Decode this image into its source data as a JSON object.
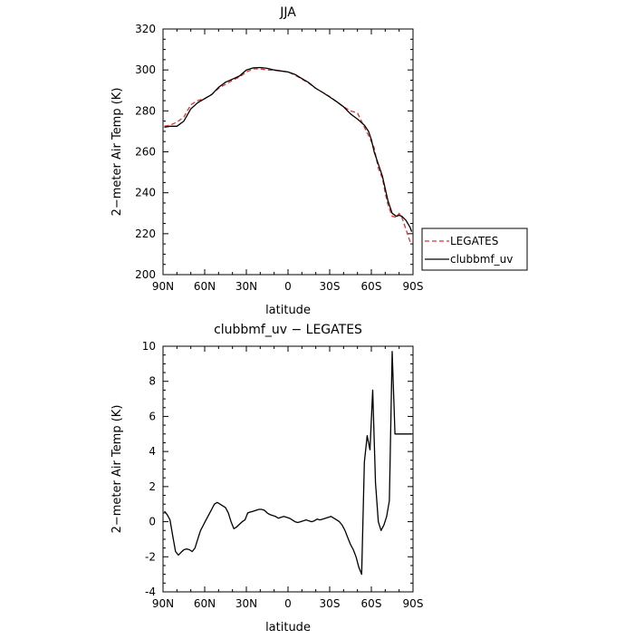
{
  "chart_data": [
    {
      "type": "line",
      "title": "JJA",
      "xlabel": "latitude",
      "ylabel": "2−meter Air Temp (K)",
      "xlim": [
        90,
        -90
      ],
      "ylim": [
        200,
        320
      ],
      "xticks": [
        {
          "value": 90,
          "label": "90N"
        },
        {
          "value": 60,
          "label": "60N"
        },
        {
          "value": 30,
          "label": "30N"
        },
        {
          "value": 0,
          "label": "0"
        },
        {
          "value": -30,
          "label": "30S"
        },
        {
          "value": -60,
          "label": "60S"
        },
        {
          "value": -90,
          "label": "90S"
        }
      ],
      "yticks": [
        200,
        220,
        240,
        260,
        280,
        300,
        320
      ],
      "grid": false,
      "legend_placement": "outside-right",
      "series": [
        {
          "name": "LEGATES",
          "color": "#e03030",
          "dash": true,
          "x": [
            89,
            85,
            80,
            75,
            70,
            65,
            60,
            55,
            50,
            45,
            40,
            35,
            30,
            25,
            20,
            15,
            10,
            5,
            0,
            -5,
            -10,
            -15,
            -20,
            -25,
            -30,
            -35,
            -40,
            -45,
            -50,
            -55,
            -58,
            -60,
            -62,
            -65,
            -68,
            -70,
            -72,
            -75,
            -78,
            -80,
            -82,
            -85,
            -88,
            -89
          ],
          "y": [
            272.5,
            273.0,
            274.5,
            277.0,
            283.0,
            285.0,
            286.0,
            288.0,
            291.0,
            293.0,
            295.0,
            296.5,
            299.0,
            300.5,
            300.5,
            300.0,
            299.8,
            299.5,
            299.0,
            297.5,
            295.5,
            293.5,
            291.0,
            289.0,
            287.0,
            284.5,
            282.0,
            280.0,
            279.0,
            272.0,
            268.0,
            265.0,
            262.0,
            252.0,
            247.0,
            240.0,
            234.0,
            228.5,
            228.0,
            230.0,
            228.0,
            222.0,
            216.0,
            215.0
          ]
        },
        {
          "name": "clubbmf_uv",
          "color": "#000000",
          "dash": false,
          "x": [
            89,
            85,
            80,
            75,
            70,
            65,
            60,
            55,
            50,
            45,
            40,
            35,
            30,
            25,
            20,
            15,
            10,
            5,
            0,
            -5,
            -10,
            -15,
            -20,
            -25,
            -30,
            -35,
            -40,
            -45,
            -50,
            -55,
            -58,
            -60,
            -62,
            -65,
            -68,
            -70,
            -72,
            -75,
            -78,
            -80,
            -82,
            -85,
            -88,
            -89
          ],
          "y": [
            272.0,
            272.5,
            272.5,
            275.0,
            281.0,
            284.0,
            286.0,
            288.0,
            291.5,
            294.0,
            295.5,
            297.0,
            300.0,
            301.0,
            301.2,
            300.8,
            300.0,
            299.5,
            299.0,
            297.8,
            295.8,
            293.8,
            291.0,
            289.0,
            286.8,
            284.5,
            282.0,
            278.5,
            276.0,
            273.0,
            270.0,
            266.0,
            260.0,
            254.0,
            248.0,
            242.0,
            236.0,
            230.0,
            228.5,
            229.0,
            228.5,
            226.5,
            223.0,
            221.0
          ]
        }
      ]
    },
    {
      "type": "line",
      "title": "clubbmf_uv − LEGATES",
      "xlabel": "latitude",
      "ylabel": "2−meter Air Temp (K)",
      "xlim": [
        90,
        -90
      ],
      "ylim": [
        -4,
        10
      ],
      "xticks": [
        {
          "value": 90,
          "label": "90N"
        },
        {
          "value": 60,
          "label": "60N"
        },
        {
          "value": 30,
          "label": "30N"
        },
        {
          "value": 0,
          "label": "0"
        },
        {
          "value": -30,
          "label": "30S"
        },
        {
          "value": -60,
          "label": "60S"
        },
        {
          "value": -90,
          "label": "90S"
        }
      ],
      "yticks": [
        -4,
        -2,
        0,
        2,
        4,
        6,
        8,
        10
      ],
      "grid": false,
      "series": [
        {
          "color": "#000000",
          "dash": false,
          "x": [
            89,
            87,
            85,
            83,
            81,
            79,
            77,
            75,
            73,
            71,
            69,
            67,
            65,
            63,
            61,
            59,
            57,
            55,
            53,
            51,
            49,
            47,
            45,
            43,
            41,
            39,
            37,
            35,
            33,
            31,
            29,
            27,
            25,
            23,
            21,
            19,
            17,
            15,
            13,
            11,
            9,
            7,
            5,
            3,
            1,
            -1,
            -3,
            -5,
            -7,
            -9,
            -11,
            -13,
            -15,
            -17,
            -19,
            -21,
            -23,
            -25,
            -27,
            -29,
            -31,
            -33,
            -35,
            -37,
            -39,
            -41,
            -43,
            -45,
            -47,
            -49,
            -51,
            -53,
            -55,
            -57,
            -59,
            -61,
            -63,
            -65,
            -67,
            -69,
            -71,
            -73,
            -75,
            -77,
            -79,
            -81,
            -83,
            -85,
            -87,
            -89
          ],
          "y": [
            0.6,
            0.4,
            0.1,
            -0.8,
            -1.7,
            -1.9,
            -1.75,
            -1.6,
            -1.55,
            -1.6,
            -1.7,
            -1.5,
            -1.0,
            -0.5,
            -0.2,
            0.1,
            0.4,
            0.7,
            1.0,
            1.1,
            1.0,
            0.9,
            0.8,
            0.5,
            0.0,
            -0.4,
            -0.3,
            -0.15,
            0.0,
            0.1,
            0.5,
            0.55,
            0.6,
            0.65,
            0.7,
            0.7,
            0.65,
            0.5,
            0.4,
            0.35,
            0.3,
            0.2,
            0.25,
            0.3,
            0.25,
            0.2,
            0.1,
            0.0,
            -0.05,
            0.0,
            0.05,
            0.1,
            0.05,
            0.0,
            0.05,
            0.15,
            0.1,
            0.15,
            0.2,
            0.25,
            0.3,
            0.2,
            0.1,
            0.0,
            -0.2,
            -0.5,
            -0.9,
            -1.3,
            -1.6,
            -2.0,
            -2.6,
            -3.0,
            3.4,
            4.9,
            4.1,
            7.5,
            2.2,
            0.0,
            -0.5,
            -0.2,
            0.3,
            1.2,
            9.7,
            5.0,
            5.0,
            5.0,
            5.0,
            5.0,
            5.0,
            5.0
          ]
        }
      ]
    }
  ]
}
